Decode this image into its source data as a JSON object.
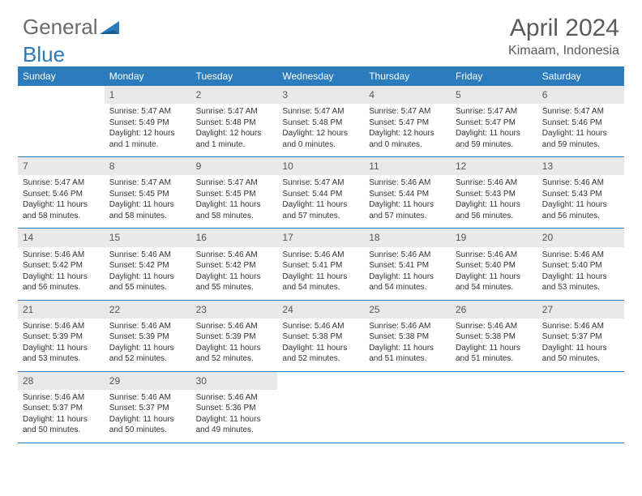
{
  "logo": {
    "partA": "General",
    "partB": "Blue"
  },
  "title": {
    "month": "April 2024",
    "location": "Kimaam, Indonesia"
  },
  "colors": {
    "header_bar": "#2b7bbd",
    "cell_num_bg": "#e9e9e9",
    "text": "#333333",
    "logo_gray": "#6b6b6b",
    "logo_blue": "#2a7ab9",
    "title_gray": "#5a5a5a"
  },
  "dayNames": [
    "Sunday",
    "Monday",
    "Tuesday",
    "Wednesday",
    "Thursday",
    "Friday",
    "Saturday"
  ],
  "weeks": [
    [
      {
        "empty": true
      },
      {
        "n": "1",
        "sr": "5:47 AM",
        "ss": "5:49 PM",
        "dl": "12 hours and 1 minute."
      },
      {
        "n": "2",
        "sr": "5:47 AM",
        "ss": "5:48 PM",
        "dl": "12 hours and 1 minute."
      },
      {
        "n": "3",
        "sr": "5:47 AM",
        "ss": "5:48 PM",
        "dl": "12 hours and 0 minutes."
      },
      {
        "n": "4",
        "sr": "5:47 AM",
        "ss": "5:47 PM",
        "dl": "12 hours and 0 minutes."
      },
      {
        "n": "5",
        "sr": "5:47 AM",
        "ss": "5:47 PM",
        "dl": "11 hours and 59 minutes."
      },
      {
        "n": "6",
        "sr": "5:47 AM",
        "ss": "5:46 PM",
        "dl": "11 hours and 59 minutes."
      }
    ],
    [
      {
        "n": "7",
        "sr": "5:47 AM",
        "ss": "5:46 PM",
        "dl": "11 hours and 58 minutes."
      },
      {
        "n": "8",
        "sr": "5:47 AM",
        "ss": "5:45 PM",
        "dl": "11 hours and 58 minutes."
      },
      {
        "n": "9",
        "sr": "5:47 AM",
        "ss": "5:45 PM",
        "dl": "11 hours and 58 minutes."
      },
      {
        "n": "10",
        "sr": "5:47 AM",
        "ss": "5:44 PM",
        "dl": "11 hours and 57 minutes."
      },
      {
        "n": "11",
        "sr": "5:46 AM",
        "ss": "5:44 PM",
        "dl": "11 hours and 57 minutes."
      },
      {
        "n": "12",
        "sr": "5:46 AM",
        "ss": "5:43 PM",
        "dl": "11 hours and 56 minutes."
      },
      {
        "n": "13",
        "sr": "5:46 AM",
        "ss": "5:43 PM",
        "dl": "11 hours and 56 minutes."
      }
    ],
    [
      {
        "n": "14",
        "sr": "5:46 AM",
        "ss": "5:42 PM",
        "dl": "11 hours and 56 minutes."
      },
      {
        "n": "15",
        "sr": "5:46 AM",
        "ss": "5:42 PM",
        "dl": "11 hours and 55 minutes."
      },
      {
        "n": "16",
        "sr": "5:46 AM",
        "ss": "5:42 PM",
        "dl": "11 hours and 55 minutes."
      },
      {
        "n": "17",
        "sr": "5:46 AM",
        "ss": "5:41 PM",
        "dl": "11 hours and 54 minutes."
      },
      {
        "n": "18",
        "sr": "5:46 AM",
        "ss": "5:41 PM",
        "dl": "11 hours and 54 minutes."
      },
      {
        "n": "19",
        "sr": "5:46 AM",
        "ss": "5:40 PM",
        "dl": "11 hours and 54 minutes."
      },
      {
        "n": "20",
        "sr": "5:46 AM",
        "ss": "5:40 PM",
        "dl": "11 hours and 53 minutes."
      }
    ],
    [
      {
        "n": "21",
        "sr": "5:46 AM",
        "ss": "5:39 PM",
        "dl": "11 hours and 53 minutes."
      },
      {
        "n": "22",
        "sr": "5:46 AM",
        "ss": "5:39 PM",
        "dl": "11 hours and 52 minutes."
      },
      {
        "n": "23",
        "sr": "5:46 AM",
        "ss": "5:39 PM",
        "dl": "11 hours and 52 minutes."
      },
      {
        "n": "24",
        "sr": "5:46 AM",
        "ss": "5:38 PM",
        "dl": "11 hours and 52 minutes."
      },
      {
        "n": "25",
        "sr": "5:46 AM",
        "ss": "5:38 PM",
        "dl": "11 hours and 51 minutes."
      },
      {
        "n": "26",
        "sr": "5:46 AM",
        "ss": "5:38 PM",
        "dl": "11 hours and 51 minutes."
      },
      {
        "n": "27",
        "sr": "5:46 AM",
        "ss": "5:37 PM",
        "dl": "11 hours and 50 minutes."
      }
    ],
    [
      {
        "n": "28",
        "sr": "5:46 AM",
        "ss": "5:37 PM",
        "dl": "11 hours and 50 minutes."
      },
      {
        "n": "29",
        "sr": "5:46 AM",
        "ss": "5:37 PM",
        "dl": "11 hours and 50 minutes."
      },
      {
        "n": "30",
        "sr": "5:46 AM",
        "ss": "5:36 PM",
        "dl": "11 hours and 49 minutes."
      },
      {
        "empty": true
      },
      {
        "empty": true
      },
      {
        "empty": true
      },
      {
        "empty": true
      }
    ]
  ],
  "labels": {
    "sunrise": "Sunrise: ",
    "sunset": "Sunset: ",
    "daylight": "Daylight: "
  }
}
